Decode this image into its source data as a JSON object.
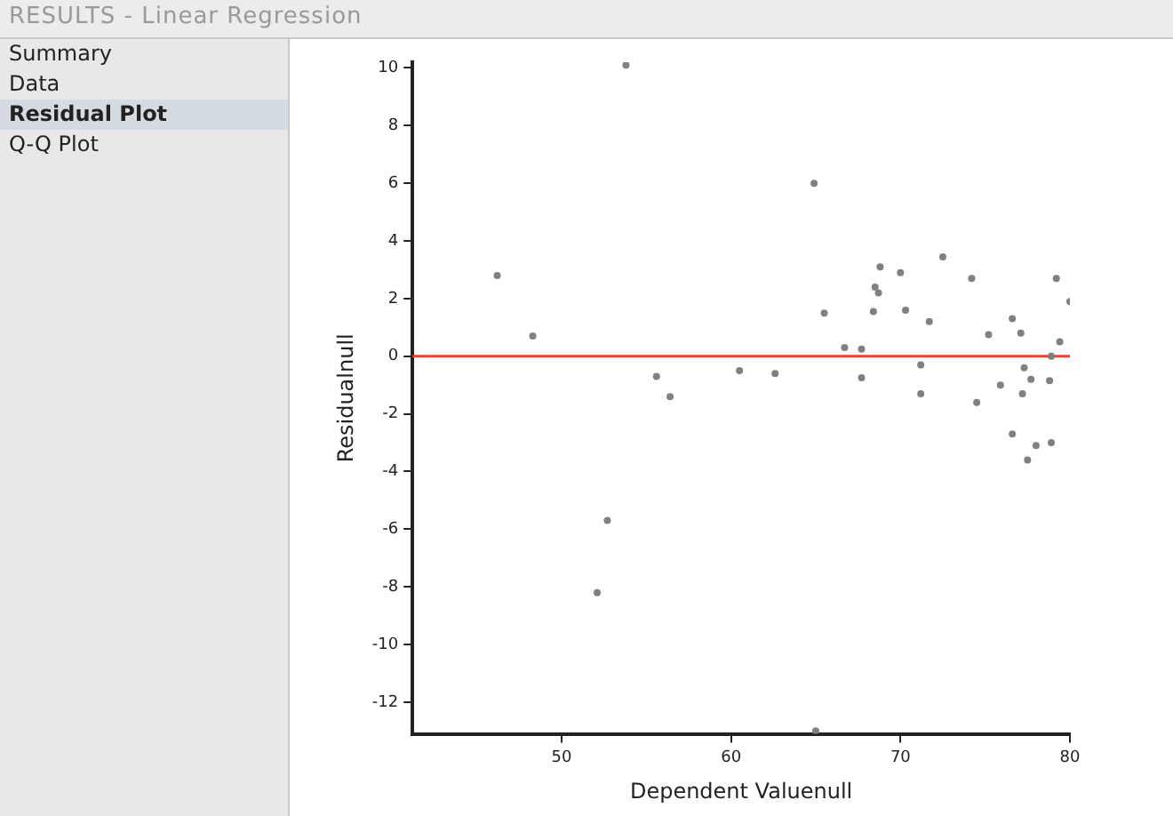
{
  "chart_data": {
    "type": "scatter",
    "title": "RESULTS - Linear Regression",
    "xlabel": "Dependent Valuenull",
    "ylabel": "Residualnull",
    "annotations": [
      "Summary",
      "Data",
      "Residual Plot",
      "Q-Q Plot"
    ],
    "series": [
      {
        "color": "#808080",
        "x": [
          46.2,
          48.3,
          53.8,
          55.6,
          60.5,
          62.6,
          56.4,
          52.7,
          52.1,
          65.0,
          64.9,
          65.5,
          66.7,
          67.7,
          67.7,
          68.4,
          68.5,
          68.7,
          68.8,
          70.0,
          70.3,
          71.2,
          71.2,
          71.7,
          72.5,
          74.2,
          74.5,
          75.2,
          75.9,
          76.6,
          76.6,
          77.1,
          77.2,
          77.3,
          77.5,
          77.7,
          78.0,
          78.8,
          78.9,
          78.9,
          79.2,
          79.4,
          80.0
        ],
        "values": [
          2.8,
          0.7,
          10.1,
          -0.7,
          -0.5,
          -0.6,
          -1.4,
          -5.7,
          -8.2,
          -13.0,
          6.0,
          1.5,
          0.3,
          0.25,
          -0.75,
          1.55,
          2.4,
          2.2,
          3.1,
          2.9,
          1.6,
          -0.3,
          -1.3,
          1.2,
          3.45,
          2.7,
          -1.6,
          0.75,
          -1.0,
          1.3,
          -2.7,
          0.8,
          -1.3,
          -0.4,
          -3.6,
          -0.8,
          -3.1,
          -0.85,
          0.0,
          -3.0,
          2.7,
          0.5,
          1.9
        ]
      }
    ],
    "xlim": [
      41.2,
      80
    ],
    "xticks": [
      50,
      60,
      70,
      80
    ],
    "ylim": [
      -13.1,
      10.2
    ],
    "yticks": [
      -12,
      -10,
      -8,
      -6,
      -4,
      -2,
      0,
      2,
      4,
      6,
      8,
      10
    ],
    "ref_lines": [
      {
        "axis": "y",
        "value": 0,
        "color": "#ff3b30"
      }
    ],
    "grid": false,
    "legend": false,
    "marker": "circle"
  }
}
